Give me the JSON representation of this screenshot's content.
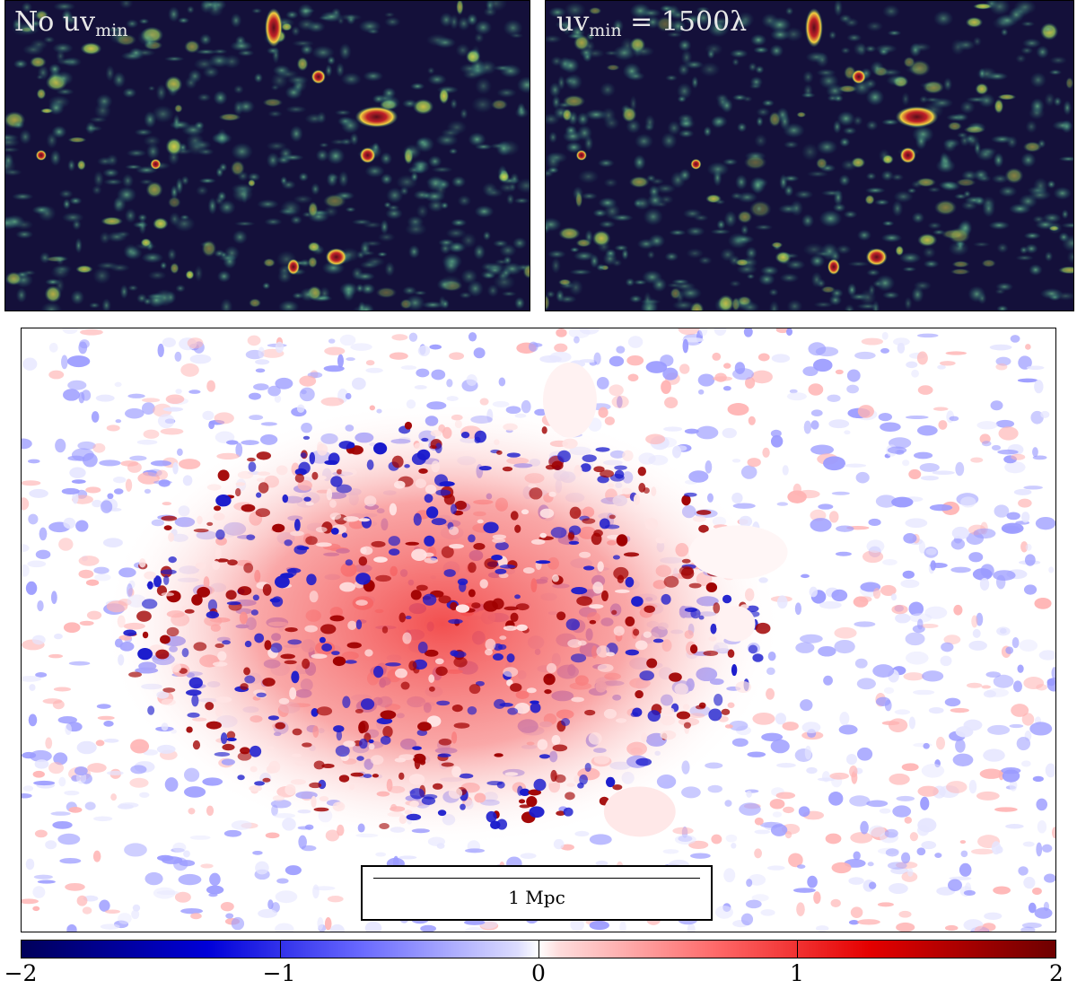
{
  "panels": {
    "left": {
      "label_main": "No uv",
      "label_sub": "min",
      "colormap": "navy-teal-yellow-red"
    },
    "right": {
      "label_main": "uv",
      "label_sub": "min",
      "label_rest": " = 1500λ",
      "colormap": "navy-teal-yellow-red"
    },
    "difference": {
      "colormap": "seismic"
    }
  },
  "scale_bar": {
    "label": "1 Mpc"
  },
  "colorbar": {
    "ticks": [
      "−2",
      "−1",
      "0",
      "1",
      "2"
    ],
    "range": [
      -2,
      2
    ],
    "colors": {
      "low": "#00005a",
      "mid": "#ffffff",
      "high": "#6e0000"
    }
  },
  "colors": {
    "map_background": "#14103a",
    "blob_teal": "#2a8a8a",
    "blob_yellow": "#e8d83a",
    "blob_red": "#b02020"
  }
}
